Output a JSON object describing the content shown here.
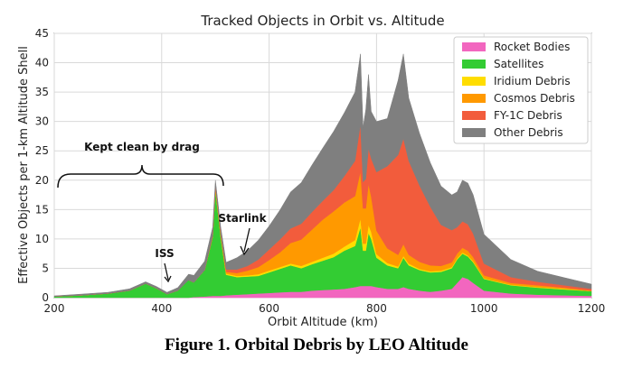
{
  "chart_data": {
    "type": "area",
    "title": "Tracked Objects in Orbit vs. Altitude",
    "xlabel": "Orbit Altitude (km)",
    "ylabel": "Effective Objects per 1-km Altitude Shell",
    "xlim": [
      200,
      1200
    ],
    "ylim": [
      0,
      45
    ],
    "xticks": [
      "200",
      "400",
      "600",
      "800",
      "1000",
      "1200"
    ],
    "yticks": [
      "0",
      "5",
      "10",
      "15",
      "20",
      "25",
      "30",
      "35",
      "40",
      "45"
    ],
    "grid": true,
    "legend_position": "top-right",
    "x": [
      200,
      250,
      300,
      340,
      370,
      390,
      410,
      430,
      450,
      460,
      480,
      495,
      500,
      505,
      510,
      520,
      540,
      560,
      580,
      600,
      620,
      640,
      660,
      680,
      700,
      720,
      740,
      760,
      770,
      775,
      780,
      785,
      790,
      800,
      820,
      840,
      850,
      860,
      880,
      900,
      920,
      940,
      950,
      960,
      970,
      980,
      1000,
      1050,
      1100,
      1150,
      1200
    ],
    "series": [
      {
        "name": "Rocket Bodies",
        "color": "#f266bf",
        "values": [
          0,
          0,
          0,
          0,
          0,
          0,
          0,
          0,
          0,
          0.1,
          0.2,
          0.3,
          0.3,
          0.3,
          0.3,
          0.4,
          0.5,
          0.6,
          0.7,
          0.8,
          0.9,
          1,
          1,
          1.2,
          1.3,
          1.4,
          1.5,
          1.8,
          2,
          2,
          2,
          2,
          2,
          1.8,
          1.5,
          1.5,
          1.8,
          1.5,
          1.2,
          1,
          1.2,
          1.5,
          2.5,
          3.5,
          3.2,
          2.5,
          1.2,
          0.7,
          0.5,
          0.4,
          0.3
        ]
      },
      {
        "name": "Satellites",
        "color": "#33cc33",
        "values": [
          0.2,
          0.4,
          0.7,
          1.2,
          2.4,
          1.6,
          0.6,
          1.2,
          3,
          2.5,
          4.5,
          10,
          18,
          14,
          10,
          3.5,
          3,
          3,
          3,
          3.5,
          4,
          4.5,
          4,
          4.5,
          5,
          5.5,
          6.5,
          7,
          10,
          6,
          6,
          9,
          8,
          5,
          4,
          3.5,
          5,
          4,
          3.5,
          3.3,
          3.2,
          3.5,
          4,
          4,
          3.8,
          3.5,
          2,
          1.4,
          1.2,
          1,
          0.8
        ]
      },
      {
        "name": "Iridium Debris",
        "color": "#ffdd00",
        "values": [
          0,
          0,
          0,
          0,
          0,
          0,
          0,
          0,
          0,
          0,
          0,
          0.1,
          0.2,
          0.2,
          0.2,
          0.2,
          0.2,
          0.2,
          0.3,
          0.3,
          0.3,
          0.3,
          0.4,
          0.4,
          0.5,
          0.6,
          0.7,
          1,
          1.5,
          1.2,
          1.2,
          1.4,
          1.2,
          0.6,
          0.4,
          0.3,
          0.3,
          0.3,
          0.2,
          0.2,
          0.2,
          0.2,
          0.2,
          0.2,
          0.2,
          0.2,
          0.1,
          0.1,
          0.1,
          0.1,
          0
        ]
      },
      {
        "name": "Cosmos Debris",
        "color": "#ff9900",
        "values": [
          0,
          0,
          0,
          0,
          0,
          0,
          0,
          0,
          0,
          0,
          0,
          0,
          0.2,
          0.2,
          0.2,
          0.3,
          0.5,
          0.8,
          1.2,
          1.8,
          2.5,
          3.5,
          4.5,
          5.5,
          6.5,
          7.2,
          7.5,
          7.5,
          8,
          6,
          6,
          7,
          6,
          4,
          2.5,
          2,
          2,
          1.5,
          1.2,
          1,
          0.8,
          0.8,
          0.8,
          0.8,
          0.8,
          0.7,
          0.5,
          0.3,
          0.3,
          0.2,
          0.1
        ]
      },
      {
        "name": "FY-1C Debris",
        "color": "#f25c3c",
        "values": [
          0,
          0,
          0,
          0,
          0,
          0,
          0,
          0,
          0,
          0,
          0,
          0.2,
          0.3,
          0.3,
          0.3,
          0.4,
          0.6,
          0.8,
          1.3,
          1.8,
          2.2,
          2.5,
          2.7,
          3,
          3.2,
          3.6,
          4.5,
          6,
          8,
          4.5,
          5,
          6,
          6.5,
          10,
          14,
          17,
          18,
          16,
          13,
          10,
          7,
          5.5,
          4.5,
          4.5,
          4.5,
          4,
          2,
          1,
          0.6,
          0.4,
          0.3
        ]
      },
      {
        "name": "Other Debris",
        "color": "#7f7f7f",
        "values": [
          0.1,
          0.2,
          0.2,
          0.3,
          0.3,
          0.3,
          0.3,
          0.5,
          1,
          1.2,
          1.5,
          1.4,
          1,
          1,
          1,
          1.2,
          2,
          2.6,
          3.3,
          4,
          5,
          6.2,
          7,
          8,
          9,
          10,
          10.8,
          11.7,
          12,
          9.3,
          11.8,
          12.6,
          8,
          8.6,
          8.1,
          12.7,
          14.4,
          10.7,
          8.9,
          7.5,
          6.6,
          6,
          6,
          7,
          7,
          6.6,
          5,
          3,
          1.8,
          1.3,
          0.8
        ]
      }
    ]
  },
  "annotations": {
    "kept_clean": "Kept clean by drag",
    "iss": "ISS",
    "starlink": "Starlink"
  },
  "caption": "Figure 1.  Orbital Debris by LEO Altitude"
}
